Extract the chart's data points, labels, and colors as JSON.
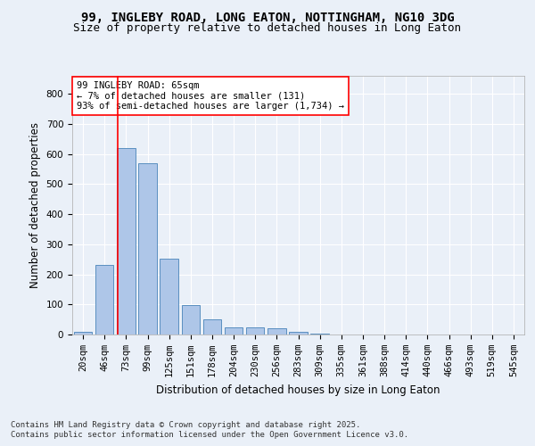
{
  "title_line1": "99, INGLEBY ROAD, LONG EATON, NOTTINGHAM, NG10 3DG",
  "title_line2": "Size of property relative to detached houses in Long Eaton",
  "xlabel": "Distribution of detached houses by size in Long Eaton",
  "ylabel": "Number of detached properties",
  "categories": [
    "20sqm",
    "46sqm",
    "73sqm",
    "99sqm",
    "125sqm",
    "151sqm",
    "178sqm",
    "204sqm",
    "230sqm",
    "256sqm",
    "283sqm",
    "309sqm",
    "335sqm",
    "361sqm",
    "388sqm",
    "414sqm",
    "440sqm",
    "466sqm",
    "493sqm",
    "519sqm",
    "545sqm"
  ],
  "values": [
    10,
    232,
    620,
    568,
    252,
    97,
    50,
    24,
    24,
    20,
    8,
    3,
    0,
    0,
    0,
    0,
    0,
    0,
    0,
    0,
    0
  ],
  "bar_color": "#aec6e8",
  "bar_edge_color": "#5a8fc0",
  "vline_color": "red",
  "vline_position": 1.6,
  "annotation_text": "99 INGLEBY ROAD: 65sqm\n← 7% of detached houses are smaller (131)\n93% of semi-detached houses are larger (1,734) →",
  "annotation_box_color": "white",
  "annotation_box_edge_color": "red",
  "ylim": [
    0,
    860
  ],
  "yticks": [
    0,
    100,
    200,
    300,
    400,
    500,
    600,
    700,
    800
  ],
  "background_color": "#eaf0f8",
  "plot_bg_color": "#eaf0f8",
  "grid_color": "white",
  "footer_line1": "Contains HM Land Registry data © Crown copyright and database right 2025.",
  "footer_line2": "Contains public sector information licensed under the Open Government Licence v3.0.",
  "title_fontsize": 10,
  "subtitle_fontsize": 9,
  "axis_label_fontsize": 8.5,
  "tick_fontsize": 7.5,
  "annotation_fontsize": 7.5,
  "footer_fontsize": 6.5
}
